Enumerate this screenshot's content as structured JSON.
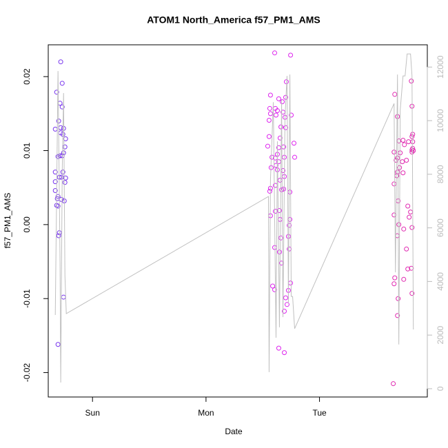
{
  "chart_data": {
    "type": "scatter",
    "title": "ATOM1 North_America f57_PM1_AMS",
    "xlabel": "Date",
    "ylabel": "f57_PM1_AMS",
    "xlim": [
      -0.39,
      2.95
    ],
    "xticks": [
      {
        "value": 0,
        "label": "Sun"
      },
      {
        "value": 1,
        "label": "Mon"
      },
      {
        "value": 2,
        "label": "Tue"
      }
    ],
    "ylim": [
      -0.0233,
      0.0243
    ],
    "yticks": [
      -0.02,
      -0.01,
      {
        "value": 0,
        "label": "0.00"
      },
      0.01,
      0.02
    ],
    "y2lim": [
      -310,
      12830
    ],
    "y2ticks": [
      0,
      2000,
      4000,
      6000,
      8000,
      10000,
      12000
    ],
    "series": [
      {
        "color": "#7733ee",
        "x": [
          -0.328,
          -0.316,
          -0.28,
          -0.267,
          -0.286,
          -0.267,
          -0.298,
          -0.28,
          -0.255,
          -0.28,
          -0.261,
          -0.237,
          -0.243,
          -0.255,
          -0.286,
          -0.304,
          -0.267,
          -0.328,
          -0.261,
          -0.237,
          -0.292,
          -0.274,
          -0.328,
          -0.243,
          -0.328,
          -0.304,
          -0.31,
          -0.274,
          -0.249,
          -0.316,
          -0.304,
          -0.292,
          -0.298,
          -0.255,
          -0.304
        ],
        "values": [
          0.0129,
          0.0179,
          0.022,
          0.0191,
          0.0164,
          0.0159,
          0.014,
          0.0131,
          0.013,
          0.0124,
          0.0122,
          0.0116,
          0.0105,
          0.0097,
          0.0093,
          0.0092,
          0.0093,
          0.0071,
          0.0071,
          0.0063,
          0.0064,
          0.0064,
          0.0058,
          0.0057,
          0.0046,
          0.0038,
          0.0035,
          0.0034,
          0.0032,
          0.0026,
          0.0025,
          -0.0011,
          -0.0015,
          -0.0098,
          -0.0162
        ]
      },
      {
        "color": "#dd22ee",
        "x": [
          1.605,
          1.745,
          1.568,
          1.708,
          1.641,
          1.672,
          1.702,
          1.562,
          1.611,
          1.629,
          1.568,
          1.678,
          1.751,
          1.617,
          1.556,
          1.696,
          1.66,
          1.702,
          1.556,
          1.653,
          1.544,
          1.641,
          1.684,
          1.775,
          1.629,
          1.581,
          1.611,
          1.69,
          1.781,
          1.641,
          1.617,
          1.574,
          1.629,
          1.678,
          1.69,
          1.653,
          1.611,
          1.684,
          1.666,
          1.568,
          1.562,
          1.739,
          1.647,
          1.611,
          1.568,
          1.739,
          1.653,
          1.733,
          1.726,
          1.66,
          1.605,
          1.733,
          1.647,
          1.666,
          1.587,
          1.745,
          1.605,
          1.726,
          1.702,
          1.714,
          1.69,
          1.641,
          1.69
        ],
        "values": [
          0.0232,
          0.0229,
          0.0175,
          0.0193,
          0.017,
          0.0166,
          0.0172,
          0.0157,
          0.0157,
          0.0154,
          0.015,
          0.0152,
          0.0148,
          0.0148,
          0.0141,
          0.0145,
          0.0132,
          0.0131,
          0.0119,
          0.0117,
          0.0106,
          0.0104,
          0.0105,
          0.011,
          0.0095,
          0.0091,
          0.009,
          0.0091,
          0.0091,
          0.0085,
          0.008,
          0.0077,
          0.0074,
          0.0073,
          0.0065,
          0.006,
          0.0053,
          0.0048,
          0.0047,
          0.0049,
          0.0045,
          0.0044,
          0.0019,
          0.0018,
          0.0012,
          0.0007,
          0.0007,
          -0.0001,
          -0.0016,
          -0.0018,
          -0.0031,
          -0.0033,
          -0.0037,
          -0.0052,
          -0.0083,
          -0.0079,
          -0.0088,
          -0.0089,
          -0.0099,
          -0.0108,
          -0.0117,
          -0.0167,
          -0.0173
        ]
      },
      {
        "color": "#e028b0",
        "x": [
          2.663,
          2.809,
          2.815,
          2.687,
          2.821,
          2.815,
          2.699,
          2.736,
          2.784,
          2.748,
          2.821,
          2.821,
          2.815,
          2.827,
          2.657,
          2.711,
          2.815,
          2.687,
          2.675,
          2.766,
          2.73,
          2.705,
          2.687,
          2.736,
          2.681,
          2.657,
          2.693,
          2.778,
          2.657,
          2.802,
          2.79,
          2.699,
          2.815,
          2.742,
          2.687,
          2.766,
          2.809,
          2.778,
          2.663,
          2.742,
          2.657,
          2.815,
          2.693,
          2.687,
          2.65
        ],
        "values": [
          0.0176,
          0.0194,
          0.016,
          0.0146,
          0.0122,
          0.0119,
          0.0113,
          0.0114,
          0.0112,
          0.0108,
          0.0112,
          0.0103,
          0.0101,
          0.01,
          0.0098,
          0.0097,
          0.0098,
          0.009,
          0.0087,
          0.0087,
          0.0085,
          0.0077,
          0.0071,
          0.007,
          0.0066,
          0.0055,
          0.0032,
          0.0025,
          0.0013,
          0.0017,
          0.001,
          0.0,
          -0.0004,
          -0.0006,
          -0.0015,
          -0.0033,
          -0.0059,
          -0.006,
          -0.0072,
          -0.0074,
          -0.008,
          -0.0093,
          -0.01,
          -0.0123,
          -0.0215
        ]
      },
      {
        "type": "line",
        "axis": "y2",
        "color": "#c0c0c0",
        "x": [
          -0.328,
          -0.304,
          -0.286,
          -0.28,
          -0.267,
          -0.255,
          -0.243,
          -0.231,
          1.55,
          1.556,
          1.568,
          1.593,
          1.617,
          1.629,
          1.647,
          1.666,
          1.678,
          1.696,
          1.714,
          1.726,
          1.739,
          1.751,
          1.763,
          1.781,
          2.657,
          2.669,
          2.687,
          2.699,
          2.711,
          2.736,
          2.754,
          2.772,
          2.802,
          2.815,
          2.827
        ],
        "values": [
          2750,
          11850,
          4730,
          230,
          8070,
          11030,
          4220,
          2800,
          7170,
          620,
          7810,
          10690,
          1900,
          9230,
          2290,
          10770,
          2670,
          10130,
          11670,
          3190,
          11720,
          3440,
          3440,
          2240,
          10640,
          4340,
          11720,
          1650,
          10390,
          11670,
          11670,
          12490,
          12490,
          11670,
          2210
        ]
      }
    ]
  }
}
